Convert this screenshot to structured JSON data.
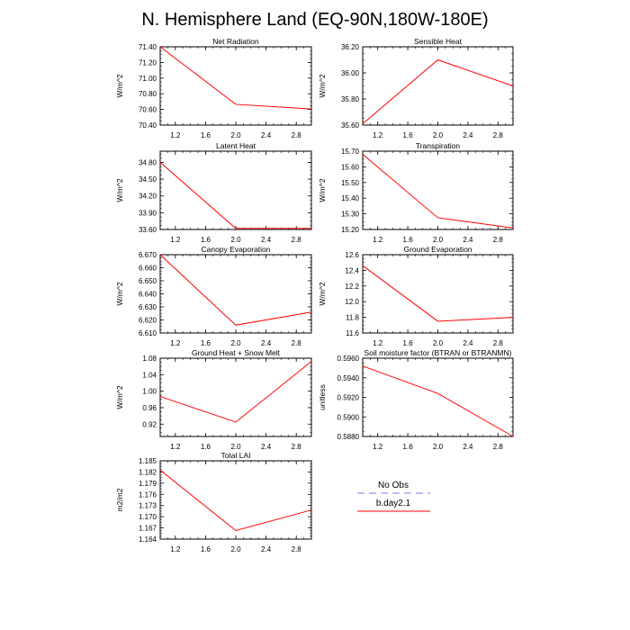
{
  "title": "N. Hemisphere Land (EQ-90N,180W-180E)",
  "legend": {
    "no_obs": {
      "label": "No Obs",
      "color": "#9999ee"
    },
    "model": {
      "label": "b.day2.1",
      "color": "#ff0000"
    }
  },
  "chart_data": [
    {
      "type": "line",
      "title": "Net Radiation",
      "ylabel": "W/m^2",
      "x": [
        1.0,
        2.0,
        3.0
      ],
      "values": [
        71.4,
        70.665,
        70.605
      ],
      "xlim": [
        1.0,
        3.0
      ],
      "ylim": [
        70.4,
        71.4
      ],
      "xticks": [
        1.2,
        1.6,
        2.0,
        2.4,
        2.8
      ],
      "xtick_labels": [
        "1.2",
        "1.6",
        "2.0",
        "2.4",
        "2.8"
      ],
      "yticks": [
        70.4,
        70.6,
        70.8,
        71.0,
        71.2,
        71.4
      ],
      "ytick_labels": [
        "70.40",
        "70.60",
        "70.80",
        "71.00",
        "71.20",
        "71.40"
      ]
    },
    {
      "type": "line",
      "title": "Sensible Heat",
      "ylabel": "W/m^2",
      "x": [
        1.0,
        2.0,
        3.0
      ],
      "values": [
        35.61,
        36.1,
        35.9
      ],
      "xlim": [
        1.0,
        3.0
      ],
      "ylim": [
        35.6,
        36.2
      ],
      "xticks": [
        1.2,
        1.6,
        2.0,
        2.4,
        2.8
      ],
      "xtick_labels": [
        "1.2",
        "1.6",
        "2.0",
        "2.4",
        "2.8"
      ],
      "yticks": [
        35.6,
        35.8,
        36.0,
        36.2
      ],
      "ytick_labels": [
        "35.60",
        "35.80",
        "36.00",
        "36.20"
      ]
    },
    {
      "type": "line",
      "title": "Latent Heat",
      "ylabel": "W/m^2",
      "x": [
        1.0,
        2.0,
        3.0
      ],
      "values": [
        34.8,
        33.62,
        33.62
      ],
      "xlim": [
        1.0,
        3.0
      ],
      "ylim": [
        33.6,
        35.0
      ],
      "xticks": [
        1.2,
        1.6,
        2.0,
        2.4,
        2.8
      ],
      "xtick_labels": [
        "1.2",
        "1.6",
        "2.0",
        "2.4",
        "2.8"
      ],
      "yticks": [
        33.6,
        33.9,
        34.2,
        34.5,
        34.8
      ],
      "ytick_labels": [
        "33.60",
        "33.90",
        "34.20",
        "34.50",
        "34.80"
      ]
    },
    {
      "type": "line",
      "title": "Transpiration",
      "ylabel": "W/m^2",
      "x": [
        1.0,
        2.0,
        3.0
      ],
      "values": [
        15.68,
        15.275,
        15.21
      ],
      "xlim": [
        1.0,
        3.0
      ],
      "ylim": [
        15.2,
        15.7
      ],
      "xticks": [
        1.2,
        1.6,
        2.0,
        2.4,
        2.8
      ],
      "xtick_labels": [
        "1.2",
        "1.6",
        "2.0",
        "2.4",
        "2.8"
      ],
      "yticks": [
        15.2,
        15.3,
        15.4,
        15.5,
        15.6,
        15.7
      ],
      "ytick_labels": [
        "15.20",
        "15.30",
        "15.40",
        "15.50",
        "15.60",
        "15.70"
      ]
    },
    {
      "type": "line",
      "title": "Canopy Evaporation",
      "ylabel": "W/m^2",
      "x": [
        1.0,
        2.0,
        3.0
      ],
      "values": [
        6.67,
        6.616,
        6.626
      ],
      "xlim": [
        1.0,
        3.0
      ],
      "ylim": [
        6.61,
        6.67
      ],
      "xticks": [
        1.2,
        1.6,
        2.0,
        2.4,
        2.8
      ],
      "xtick_labels": [
        "1.2",
        "1.6",
        "2.0",
        "2.4",
        "2.8"
      ],
      "yticks": [
        6.61,
        6.62,
        6.63,
        6.64,
        6.65,
        6.66,
        6.67
      ],
      "ytick_labels": [
        "6.610",
        "6.620",
        "6.630",
        "6.640",
        "6.650",
        "6.660",
        "6.670"
      ]
    },
    {
      "type": "line",
      "title": "Ground Evaporation",
      "ylabel": "W/m^2",
      "x": [
        1.0,
        2.0,
        3.0
      ],
      "values": [
        12.46,
        11.75,
        11.8
      ],
      "xlim": [
        1.0,
        3.0
      ],
      "ylim": [
        11.6,
        12.6
      ],
      "xticks": [
        1.2,
        1.6,
        2.0,
        2.4,
        2.8
      ],
      "xtick_labels": [
        "1.2",
        "1.6",
        "2.0",
        "2.4",
        "2.8"
      ],
      "yticks": [
        11.6,
        11.8,
        12.0,
        12.2,
        12.4,
        12.6
      ],
      "ytick_labels": [
        "11.6",
        "11.8",
        "12.0",
        "12.2",
        "12.4",
        "12.6"
      ]
    },
    {
      "type": "line",
      "title": "Ground Heat + Snow Melt",
      "ylabel": "W/m^2",
      "x": [
        1.0,
        2.0,
        3.0
      ],
      "values": [
        0.987,
        0.925,
        1.072
      ],
      "xlim": [
        1.0,
        3.0
      ],
      "ylim": [
        0.89,
        1.08
      ],
      "xticks": [
        1.2,
        1.6,
        2.0,
        2.4,
        2.8
      ],
      "xtick_labels": [
        "1.2",
        "1.6",
        "2.0",
        "2.4",
        "2.8"
      ],
      "yticks": [
        0.92,
        0.96,
        1.0,
        1.04,
        1.08
      ],
      "ytick_labels": [
        "0.92",
        "0.96",
        "1.00",
        "1.04",
        "1.08"
      ]
    },
    {
      "type": "line",
      "title": "Soil moisture factor (BTRAN or BTRANMN)",
      "ylabel": "unitless",
      "x": [
        1.0,
        2.0,
        3.0
      ],
      "values": [
        0.5952,
        0.5924,
        0.588
      ],
      "xlim": [
        1.0,
        3.0
      ],
      "ylim": [
        0.588,
        0.596
      ],
      "xticks": [
        1.2,
        1.6,
        2.0,
        2.4,
        2.8
      ],
      "xtick_labels": [
        "1.2",
        "1.6",
        "2.0",
        "2.4",
        "2.8"
      ],
      "yticks": [
        0.588,
        0.59,
        0.592,
        0.594,
        0.596
      ],
      "ytick_labels": [
        "0.5880",
        "0.5900",
        "0.5920",
        "0.5940",
        "0.5960"
      ]
    },
    {
      "type": "line",
      "title": "Total LAI",
      "ylabel": "m2/m2",
      "x": [
        1.0,
        2.0,
        3.0
      ],
      "values": [
        1.1825,
        1.1663,
        1.1718
      ],
      "xlim": [
        1.0,
        3.0
      ],
      "ylim": [
        1.164,
        1.185
      ],
      "xticks": [
        1.2,
        1.6,
        2.0,
        2.4,
        2.8
      ],
      "xtick_labels": [
        "1.2",
        "1.6",
        "2.0",
        "2.4",
        "2.8"
      ],
      "yticks": [
        1.164,
        1.167,
        1.17,
        1.173,
        1.176,
        1.179,
        1.182,
        1.185
      ],
      "ytick_labels": [
        "1.164",
        "1.167",
        "1.170",
        "1.173",
        "1.176",
        "1.179",
        "1.182",
        "1.185"
      ]
    }
  ]
}
